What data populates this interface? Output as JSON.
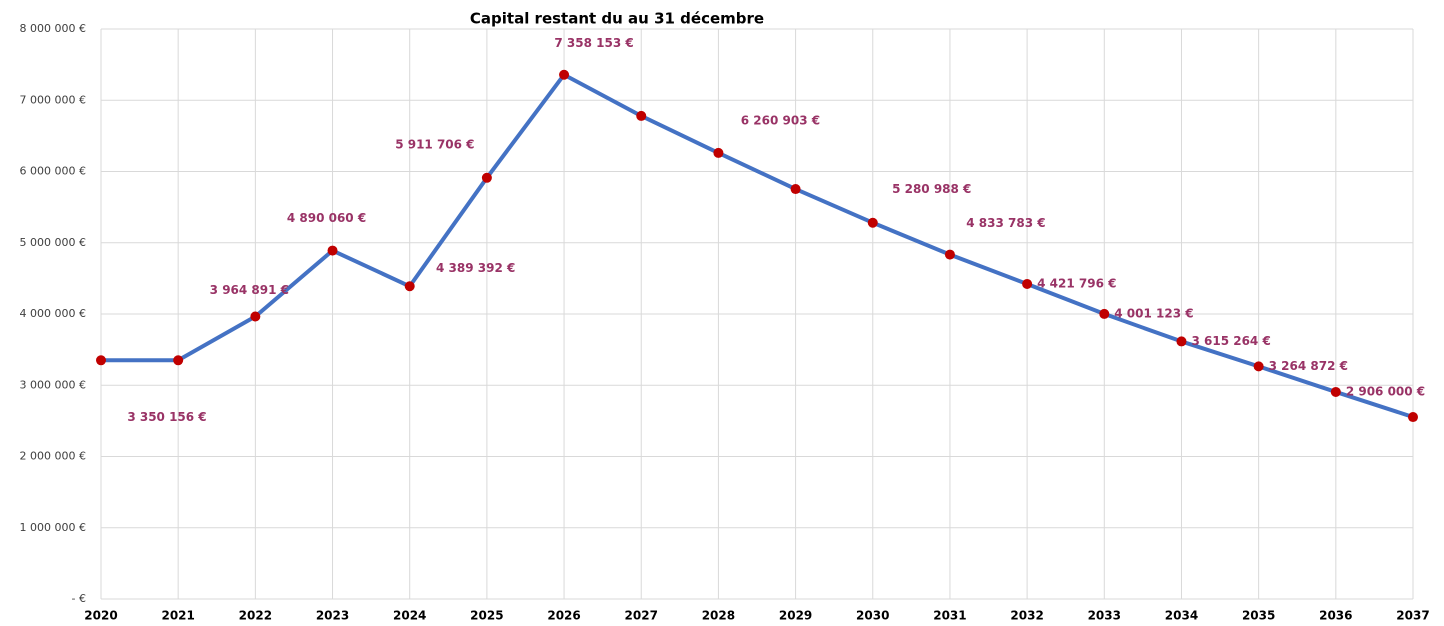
{
  "chart_data": {
    "type": "line",
    "title": "Capital restant du au 31 décembre",
    "x": [
      2020,
      2021,
      2022,
      2023,
      2024,
      2025,
      2026,
      2027,
      2028,
      2029,
      2030,
      2031,
      2032,
      2033,
      2034,
      2035,
      2036,
      2037
    ],
    "values": [
      3350156,
      3350156,
      3964891,
      4890060,
      4389392,
      5911706,
      7358153,
      6780000,
      6260903,
      5754000,
      5280988,
      4833783,
      4421796,
      4001123,
      3615264,
      3264872,
      2906000,
      2554000
    ],
    "value_labels": [
      "3 350 156 €",
      null,
      "3 964 891 €",
      "4 890 060 €",
      "4 389 392 €",
      "5 911 706 €",
      "7 358 153 €",
      null,
      "6 260 903 €",
      null,
      "5 280 988 €",
      "4 833 783 €",
      "4 421 796 €",
      "4 001 123 €",
      "3 615 264 €",
      "3 264 872 €",
      "2 906 000 €",
      null
    ],
    "color": "#4472c4",
    "marker_color": "#c00000",
    "label_color": "#993366",
    "xlim": [
      2020,
      2037
    ],
    "xticks": [
      2020,
      2021,
      2022,
      2023,
      2024,
      2025,
      2026,
      2027,
      2028,
      2029,
      2030,
      2031,
      2032,
      2033,
      2034,
      2035,
      2036,
      2037
    ],
    "ylim": [
      0,
      8000000
    ],
    "yticks": [
      {
        "value": 0,
        "label": "- €"
      },
      {
        "value": 1000000,
        "label": "1 000 000 €"
      },
      {
        "value": 2000000,
        "label": "2 000 000 €"
      },
      {
        "value": 3000000,
        "label": "3 000 000 €"
      },
      {
        "value": 4000000,
        "label": "4 000 000 €"
      },
      {
        "value": 5000000,
        "label": "5 000 000 €"
      },
      {
        "value": 6000000,
        "label": "6 000 000 €"
      },
      {
        "value": 7000000,
        "label": "7 000 000 €"
      },
      {
        "value": 8000000,
        "label": "8 000 000 €"
      }
    ],
    "grid": true
  }
}
